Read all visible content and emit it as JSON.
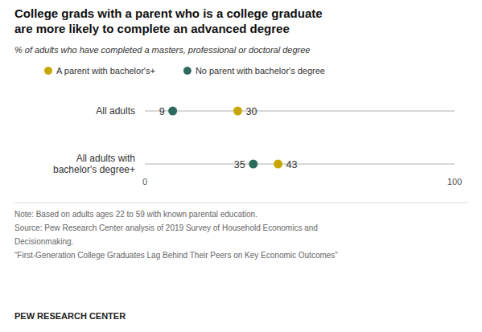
{
  "chart_data": {
    "type": "dot",
    "title": "College grads with a parent who is a college graduate\nare more likely to complete an advanced degree",
    "subtitle": "% of adults who have completed a masters, professional or doctoral degree",
    "categories": [
      "All adults",
      "All adults with\nbachelor's degree+"
    ],
    "series": [
      {
        "name": "A parent with bachelor's+",
        "color": "#c8a800",
        "values": [
          30,
          43
        ]
      },
      {
        "name": "No parent with bachelor's degree",
        "color": "#2e6b5e",
        "values": [
          9,
          35
        ]
      }
    ],
    "xlim": [
      0,
      100
    ],
    "xticks": [
      0,
      100
    ],
    "data_labels": true,
    "legend": "top",
    "annotations": [
      "Note: Based on adults ages 22 to 59 with known parental education.",
      "Source: Pew Research Center analysis of 2019 Survey of Household Economics and",
      "Decisionmaking.",
      "“First-Generation College Graduates Lag Behind Their Peers on Key Economic Outcomes”"
    ],
    "source": "PEW RESEARCH CENTER"
  }
}
